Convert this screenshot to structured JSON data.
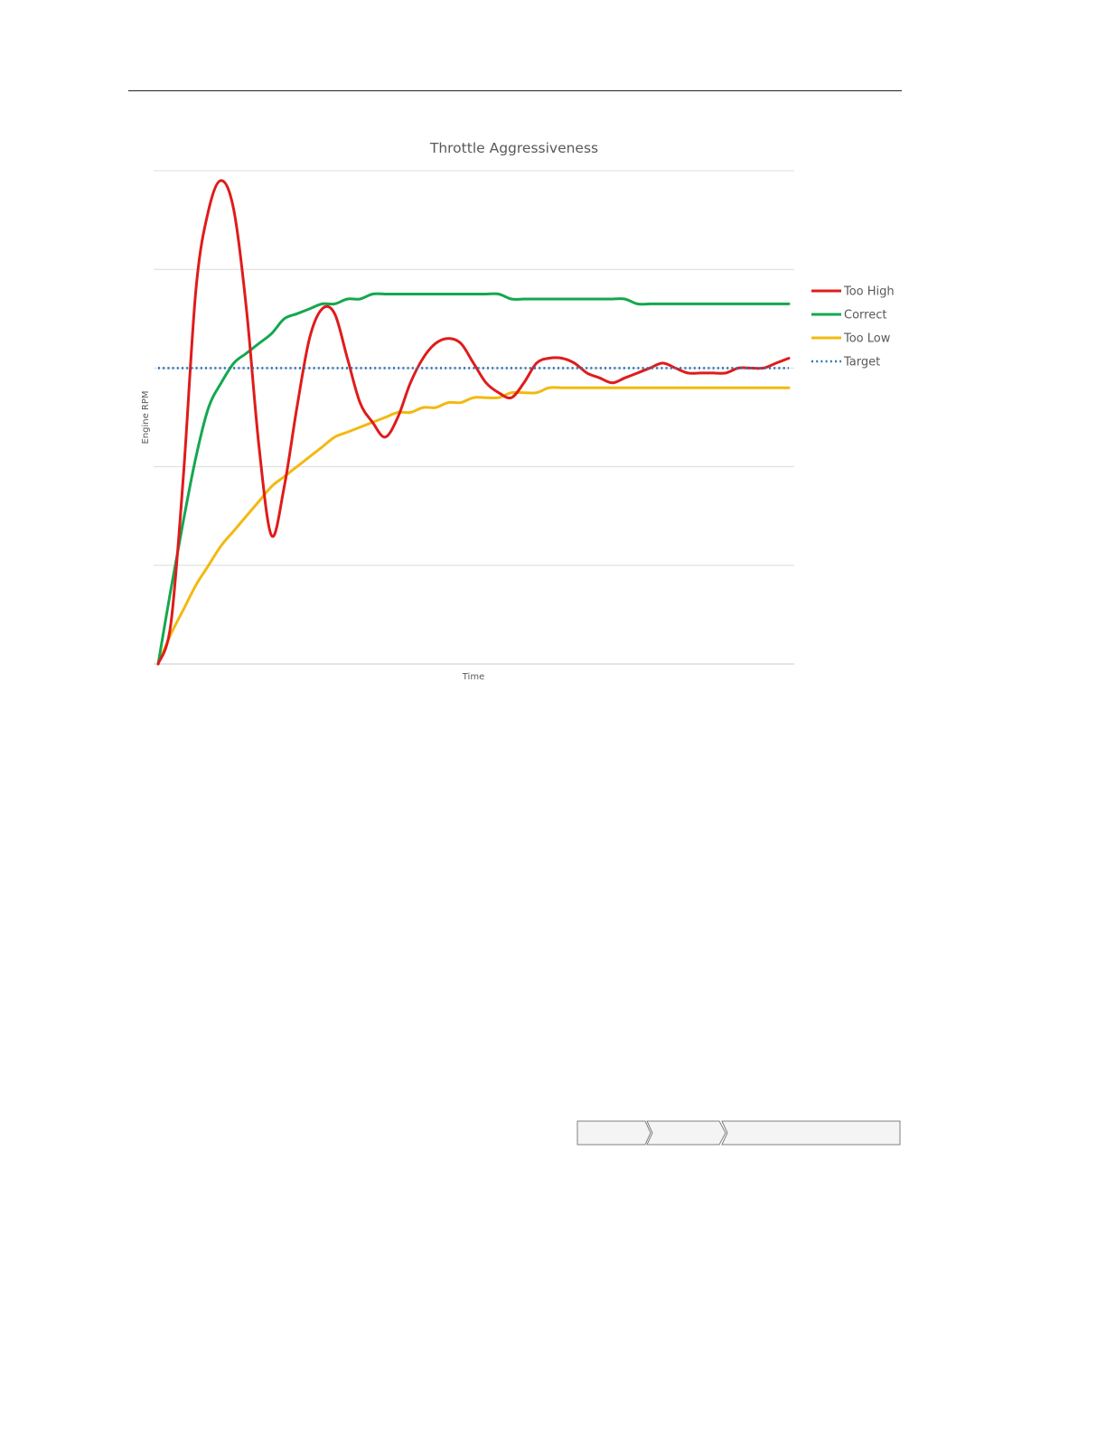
{
  "chart_data": {
    "type": "line",
    "title": "Throttle Aggressiveness",
    "xlabel": "Time",
    "ylabel": "Engine RPM",
    "xlim": [
      0,
      100
    ],
    "ylim": [
      0,
      100
    ],
    "grid": true,
    "legend_position": "right",
    "x": [
      0,
      2,
      4,
      6,
      8,
      10,
      12,
      14,
      16,
      18,
      20,
      22,
      24,
      26,
      28,
      30,
      32,
      34,
      36,
      38,
      40,
      42,
      44,
      46,
      48,
      50,
      52,
      54,
      56,
      58,
      60,
      62,
      64,
      66,
      68,
      70,
      72,
      74,
      76,
      78,
      80,
      82,
      84,
      86,
      88,
      90,
      92,
      94,
      96,
      98,
      100
    ],
    "series": [
      {
        "name": "Too High",
        "color": "#e01b1b",
        "style": "solid",
        "values": [
          0,
          8,
          38,
          76,
          92,
          98,
          92,
          72,
          44,
          26,
          36,
          52,
          66,
          72,
          71,
          62,
          53,
          49,
          46,
          50,
          57,
          62,
          65,
          66,
          65,
          61,
          57,
          55,
          54,
          57,
          61,
          62,
          62,
          61,
          59,
          58,
          57,
          58,
          59,
          60,
          61,
          60,
          59,
          59,
          59,
          59,
          60,
          60,
          60,
          61,
          62
        ]
      },
      {
        "name": "Correct",
        "color": "#13a84e",
        "style": "solid",
        "values": [
          0,
          15,
          29,
          42,
          52,
          57,
          61,
          63,
          65,
          67,
          70,
          71,
          72,
          73,
          73,
          74,
          74,
          75,
          75,
          75,
          75,
          75,
          75,
          75,
          75,
          75,
          75,
          75,
          74,
          74,
          74,
          74,
          74,
          74,
          74,
          74,
          74,
          74,
          73,
          73,
          73,
          73,
          73,
          73,
          73,
          73,
          73,
          73,
          73,
          73,
          73
        ]
      },
      {
        "name": "Too Low",
        "color": "#f2b90f",
        "style": "solid",
        "values": [
          0,
          6,
          11,
          16,
          20,
          24,
          27,
          30,
          33,
          36,
          38,
          40,
          42,
          44,
          46,
          47,
          48,
          49,
          50,
          51,
          51,
          52,
          52,
          53,
          53,
          54,
          54,
          54,
          55,
          55,
          55,
          56,
          56,
          56,
          56,
          56,
          56,
          56,
          56,
          56,
          56,
          56,
          56,
          56,
          56,
          56,
          56,
          56,
          56,
          56,
          56
        ]
      },
      {
        "name": "Target",
        "color": "#2e75b6",
        "style": "dotted",
        "values": [
          60,
          60,
          60,
          60,
          60,
          60,
          60,
          60,
          60,
          60,
          60,
          60,
          60,
          60,
          60,
          60,
          60,
          60,
          60,
          60,
          60,
          60,
          60,
          60,
          60,
          60,
          60,
          60,
          60,
          60,
          60,
          60,
          60,
          60,
          60,
          60,
          60,
          60,
          60,
          60,
          60,
          60,
          60,
          60,
          60,
          60,
          60,
          60,
          60,
          60,
          60
        ]
      }
    ]
  }
}
